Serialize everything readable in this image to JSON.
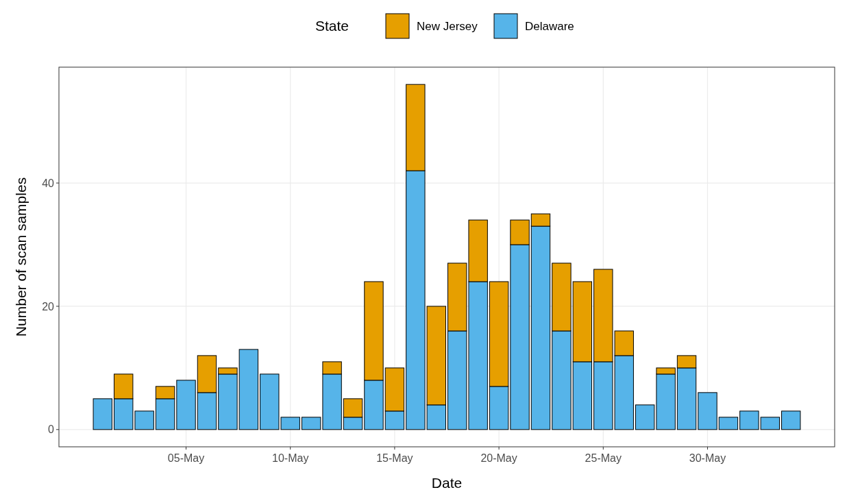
{
  "chart_data": {
    "type": "bar",
    "stacked": true,
    "xlabel": "Date",
    "ylabel": "Number of scan samples",
    "legend_title": "State",
    "legend": "top",
    "categories": [
      null,
      null,
      null,
      null,
      "05-May",
      null,
      null,
      null,
      null,
      "10-May",
      null,
      null,
      null,
      null,
      "15-May",
      null,
      null,
      null,
      null,
      "20-May",
      null,
      null,
      null,
      null,
      "25-May",
      null,
      null,
      null,
      null,
      "30-May",
      null,
      null,
      null,
      null
    ],
    "series": [
      {
        "name": "Delaware",
        "color": "#56b4e9",
        "values": [
          5,
          5,
          3,
          5,
          8,
          6,
          9,
          13,
          9,
          2,
          2,
          9,
          2,
          8,
          3,
          42,
          4,
          16,
          24,
          7,
          30,
          33,
          16,
          11,
          11,
          12,
          4,
          9,
          10,
          6,
          2,
          3,
          2,
          3
        ]
      },
      {
        "name": "New Jersey",
        "color": "#e69f00",
        "values": [
          null,
          4,
          null,
          2,
          null,
          6,
          1,
          null,
          null,
          null,
          null,
          2,
          3,
          16,
          7,
          14,
          16,
          11,
          10,
          17,
          4,
          2,
          11,
          13,
          15,
          4,
          null,
          1,
          2,
          null,
          null,
          null,
          null,
          null
        ]
      }
    ],
    "ylim": [
      -2.8,
      58.8
    ],
    "yticks": [
      0,
      20,
      40
    ],
    "grid": true
  }
}
